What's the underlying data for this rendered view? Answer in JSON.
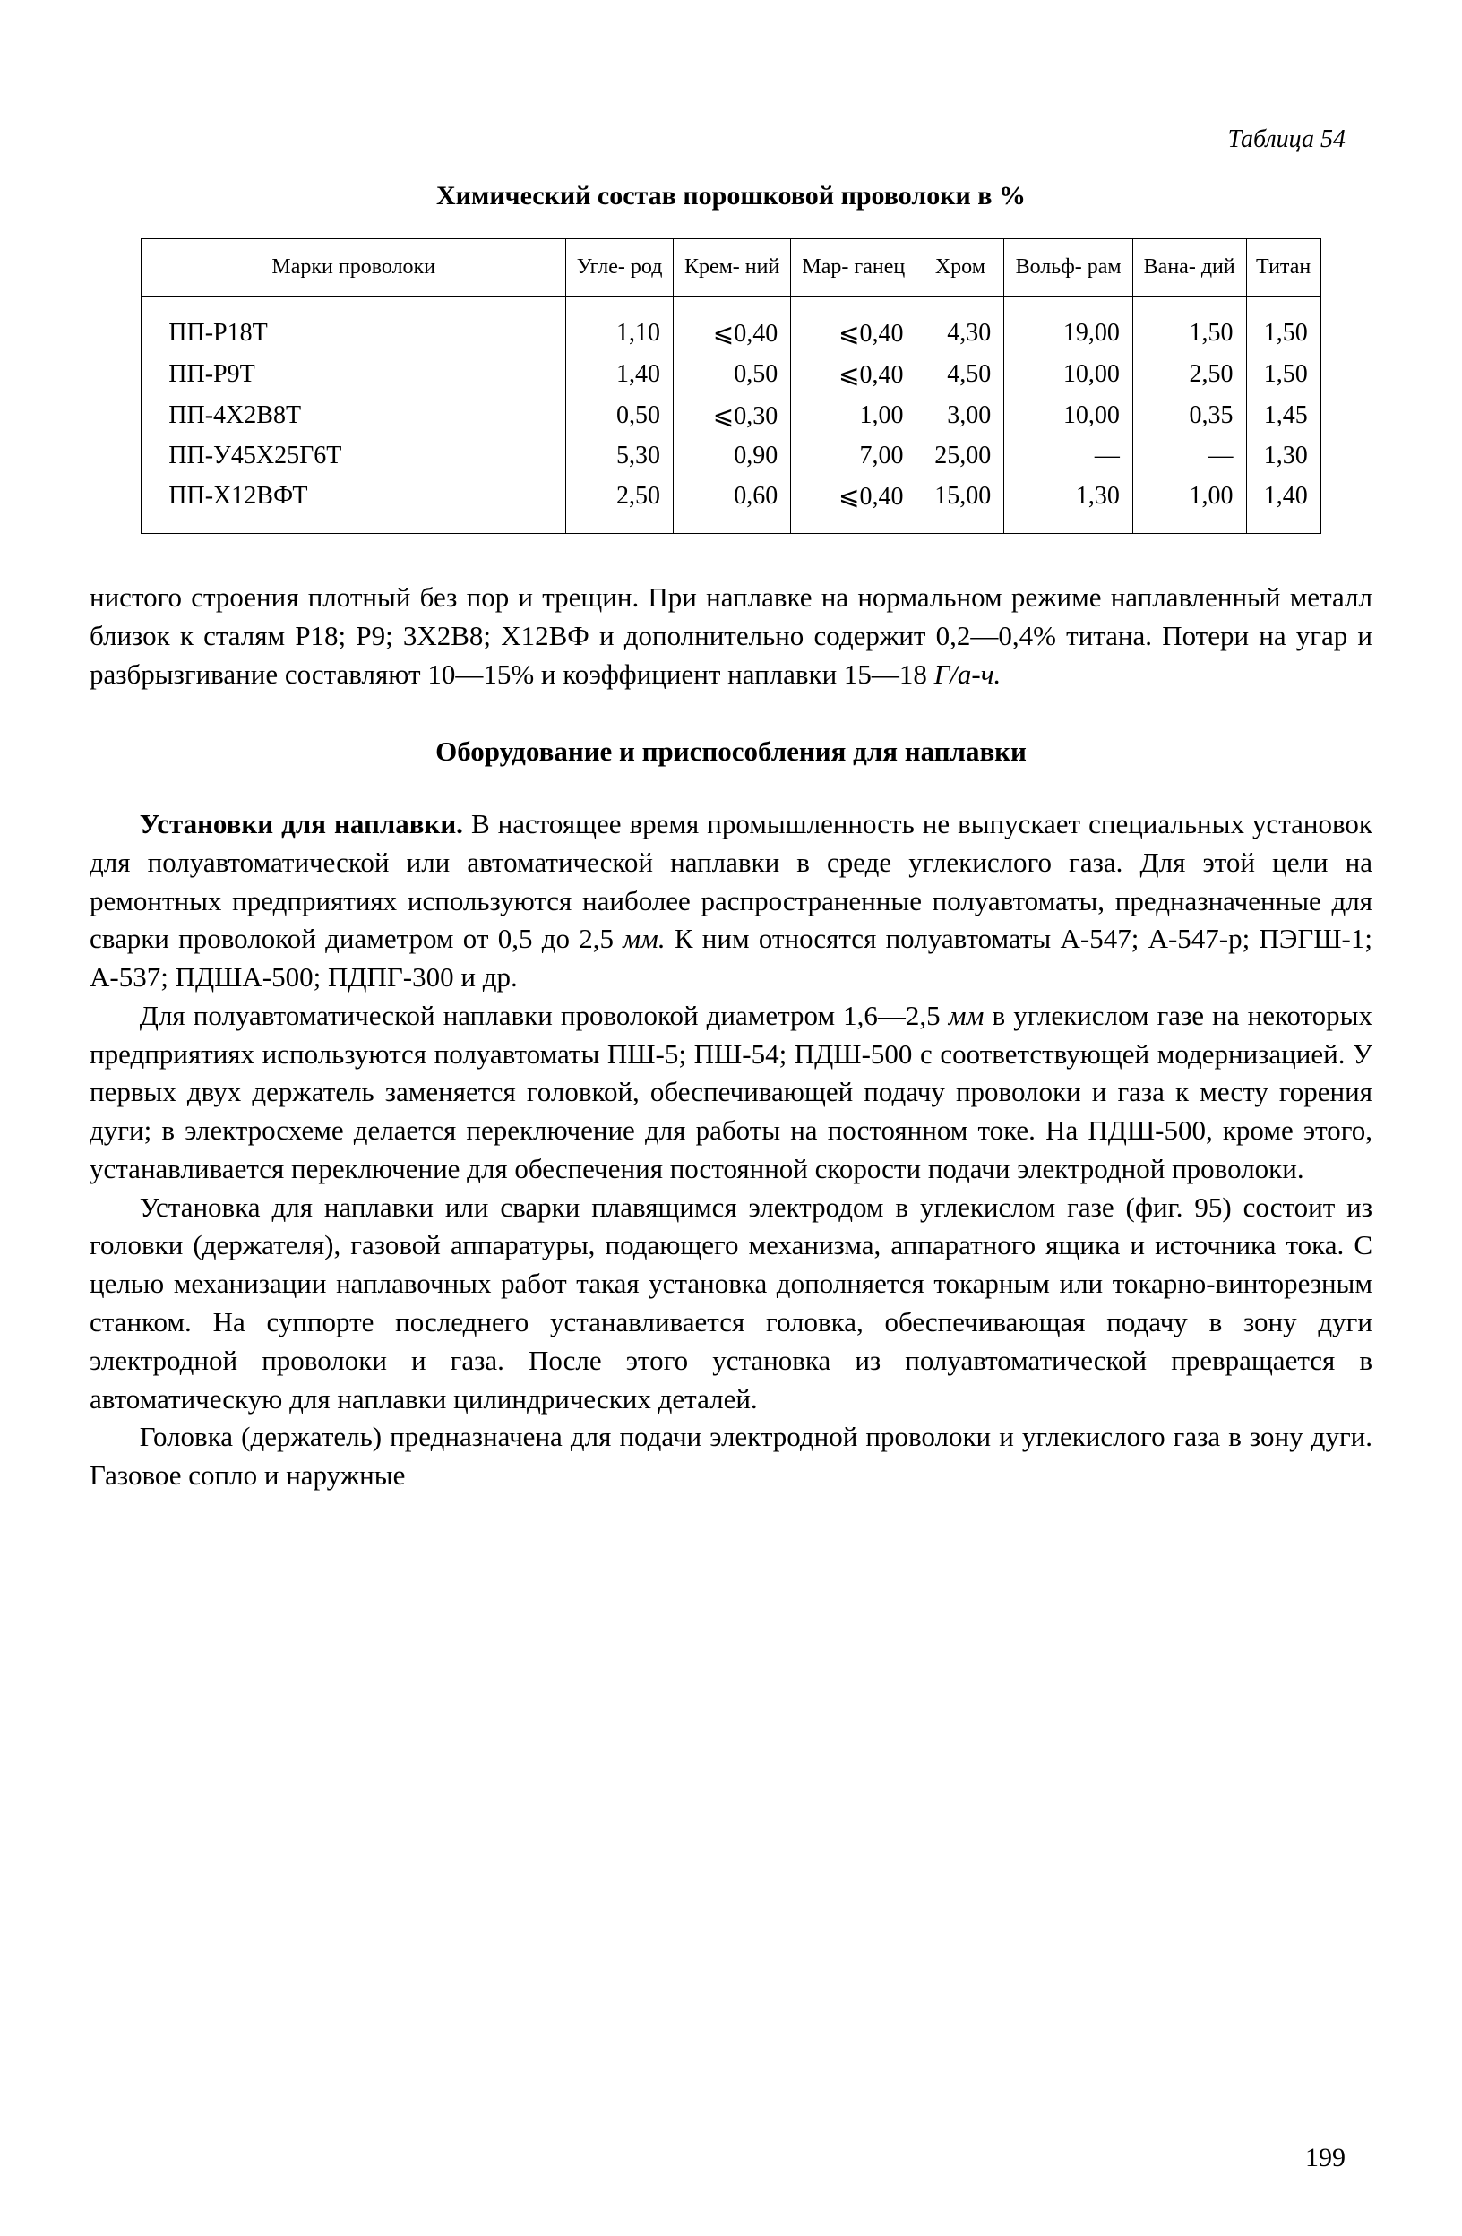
{
  "page": {
    "top_mark": "",
    "table_number_label": "Таблица 54",
    "table_title": "Химический состав порошковой проволоки в %",
    "page_number": "199"
  },
  "table": {
    "columns": [
      "Марки проволоки",
      "Угле-\nрод",
      "Крем-\nний",
      "Мар-\nганец",
      "Хром",
      "Вольф-\nрам",
      "Вана-\nдий",
      "Титан"
    ],
    "rows": [
      [
        "ПП-Р18Т",
        "1,10",
        "⩽0,40",
        "⩽0,40",
        "4,30",
        "19,00",
        "1,50",
        "1,50"
      ],
      [
        "ПП-Р9Т",
        "1,40",
        "0,50",
        "⩽0,40",
        "4,50",
        "10,00",
        "2,50",
        "1,50"
      ],
      [
        "ПП-4Х2В8Т",
        "0,50",
        "⩽0,30",
        "1,00",
        "3,00",
        "10,00",
        "0,35",
        "1,45"
      ],
      [
        "ПП-У45Х25Г6Т",
        "5,30",
        "0,90",
        "7,00",
        "25,00",
        "—",
        "—",
        "1,30"
      ],
      [
        "ПП-Х12ВФТ",
        "2,50",
        "0,60",
        "⩽0,40",
        "15,00",
        "1,30",
        "1,00",
        "1,40"
      ]
    ],
    "border_color": "#000000",
    "header_fontsize": 24,
    "cell_fontsize": 28
  },
  "text": {
    "para1": "нистого строения плотный без пор и трещин. При наплавке на нормальном режиме наплавленный металл близок к сталям Р18; Р9; 3Х2В8; Х12ВФ и дополнительно содержит 0,2—0,4% титана. Потери на угар и разбрызгивание составляют 10—15% и коэффициент наплавки 15—18 ",
    "para1_ital": "Г/а-ч.",
    "section_heading": "Оборудование и приспособления для наплавки",
    "para2_lead": "Установки для наплавки.",
    "para2_rest": " В настоящее время промышленность не выпускает специальных установок для полуавтоматической или автоматической наплавки в среде углекислого газа. Для этой цели на ремонтных предприятиях используются наиболее распространенные полуавтоматы, предназначенные для сварки проволокой диаметром от 0,5 до 2,5 ",
    "para2_ital": "мм.",
    "para2_tail": " К ним относятся полуавтоматы А-547; А-547-р; ПЭГШ-1; А-537; ПДША-500; ПДПГ-300 и др.",
    "para3_a": "Для полуавтоматической наплавки проволокой диаметром 1,6—2,5 ",
    "para3_ital": "мм",
    "para3_b": " в углекислом газе на некоторых предприятиях используются полуавтоматы ПШ-5; ПШ-54; ПДШ-500 с соответствующей модернизацией. У первых двух держатель заменяется головкой, обеспечивающей подачу проволоки и газа к месту горения дуги; в электросхеме делается переключение для работы на постоянном токе. На ПДШ-500, кроме этого, устанавливается переключение для обеспечения постоянной скорости подачи электродной проволоки.",
    "para4": "Установка для наплавки или сварки плавящимся электродом в углекислом газе (фиг. 95) состоит из головки (держателя), газовой аппаратуры, подающего механизма, аппаратного ящика и источника тока. С целью механизации наплавочных работ такая установка дополняется токарным или токарно-винторезным станком. На суппорте последнего устанавливается головка, обеспечивающая подачу в зону дуги электродной проволоки и газа. После этого установка из полуавтоматической превращается в автоматическую для наплавки цилиндрических деталей.",
    "para5": "Головка (держатель) предназначена для подачи электродной проволоки и углекислого газа в зону дуги. Газовое сопло и наружные"
  },
  "styling": {
    "background_color": "#ffffff",
    "text_color": "#000000",
    "font_family": "Times New Roman",
    "body_fontsize": 31,
    "line_height": 1.38
  }
}
